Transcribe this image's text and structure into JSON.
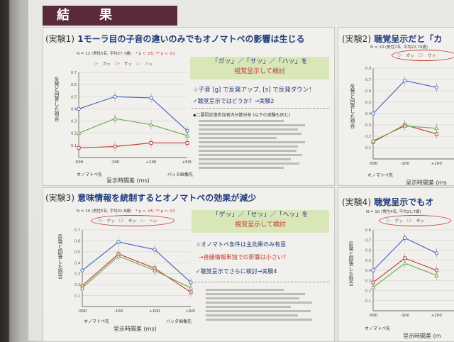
{
  "section_title": "結　果",
  "exp1": {
    "tag": "(実験1)",
    "title": "1モーラ目の子音の違いのみでもオノマトペの影響は生じる",
    "meta": "N = 12 (男性5名, 平均27.7歳)",
    "sig": "* p < .05, ** p < .01",
    "legend": [
      "ガッ",
      "サッ",
      "ハッ"
    ],
    "ylabel": "反発と回答した割合",
    "xlabel": "呈示時間差 (ms)",
    "xtick_left": "オノマトペ先",
    "xtick_right": "バッタ画像先",
    "ticks": [
      "-500",
      "-100",
      "+100",
      "+500"
    ],
    "yticks": [
      "0.1",
      "0.2",
      "0.3",
      "0.4",
      "0.5",
      "0.6",
      "0.7"
    ],
    "box_line1": "「ガッ」／「サッ」／「ハッ」を",
    "box_line2": "視覚呈示して検討",
    "finding1": "☆子音 [g] で反発アップ, [s] で反発ダウン！",
    "finding2": "✓聴覚呈示ではどうか？→実験2",
    "stats_head": "◆二要因反復参加者内分散分析 (以下の実験も同じ)"
  },
  "exp2": {
    "tag": "(実験2)",
    "title": "聴覚呈示だと「カ",
    "meta": "N = 10 (男性7名, 平均22.70歳)",
    "legend": [
      "ガッ",
      "サッ"
    ],
    "ylabel": "反発と回答した割合",
    "xlabel": "呈示時間差 (ms",
    "xtick_left": "オノマトペ先",
    "ticks": [
      "-500",
      "-100",
      "+100"
    ]
  },
  "exp3": {
    "tag": "(実験3)",
    "title": "意味情報を統制するとオノマトペの効果が減少",
    "meta": "N = 10 (男性5名, 平均21.8歳)",
    "sig": "* p < .05, ** p < .01",
    "legend": [
      "ゲッ",
      "セッ",
      "ヘッ"
    ],
    "ylabel": "反発と回答した割合",
    "xlabel": "呈示時間差 (ms)",
    "xtick_left": "オノマトペ先",
    "xtick_right": "バッタ画像先",
    "ticks": [
      "-500",
      "-100",
      "+100",
      "+500"
    ],
    "box_line1": "「ゲッ」／「セッ」／「ヘッ」を",
    "box_line2": "視覚呈示して検討",
    "finding1": "☆オノマトペ条件は主効果のみ有意",
    "finding2": "→音韻情報単独での影響は小さい?",
    "finding3": "✓聴覚呈示でさらに検討→実験4"
  },
  "exp4": {
    "tag": "(実験4)",
    "title": "聴覚呈示でもオ",
    "meta": "N = 10 (男性4名, 平均21.7歳)",
    "legend": [
      "ゲッ",
      "セッ"
    ],
    "ylabel": "反発と回答した割合",
    "xlabel": "呈示時間差 (m",
    "xtick_left": "オノマトペ先",
    "ticks": [
      "-500",
      "-100",
      "+100"
    ]
  },
  "chart_data": [
    {
      "type": "line",
      "title": "",
      "xlabel": "呈示時間差 (ms)",
      "ylabel": "反発と回答した割合",
      "categories": [
        "-500",
        "-100",
        "+100",
        "+500"
      ],
      "ylim": [
        0,
        0.7
      ],
      "series": [
        {
          "name": "ガッ",
          "values": [
            0.4,
            0.5,
            0.49,
            0.22
          ],
          "color": "#3a5fbf"
        },
        {
          "name": "サッ",
          "values": [
            0.08,
            0.09,
            0.12,
            0.12
          ],
          "color": "#c0392b"
        },
        {
          "name": "ハッ",
          "values": [
            0.2,
            0.32,
            0.27,
            0.18
          ],
          "color": "#6aa84f"
        }
      ]
    },
    {
      "type": "line",
      "title": "",
      "xlabel": "呈示時間差 (ms",
      "ylabel": "反発と回答した割合",
      "categories": [
        "-500",
        "-100",
        "+100"
      ],
      "ylim": [
        0,
        0.8
      ],
      "series": [
        {
          "name": "ガッ",
          "values": [
            0.4,
            0.69,
            0.63
          ],
          "color": "#3a5fbf"
        },
        {
          "name": "サッ",
          "values": [
            0.15,
            0.3,
            0.22
          ],
          "color": "#c0392b"
        },
        {
          "name": "",
          "values": [
            0.16,
            0.29,
            0.27
          ],
          "color": "#6aa84f"
        }
      ]
    },
    {
      "type": "line",
      "title": "",
      "xlabel": "呈示時間差 (ms)",
      "ylabel": "反発と回答した割合",
      "categories": [
        "-500",
        "-100",
        "+100",
        "+500"
      ],
      "ylim": [
        0,
        0.7
      ],
      "series": [
        {
          "name": "ゲッ",
          "values": [
            0.33,
            0.59,
            0.52,
            0.22
          ],
          "color": "#3a5fbf"
        },
        {
          "name": "セッ",
          "values": [
            0.19,
            0.48,
            0.35,
            0.13
          ],
          "color": "#c0392b"
        },
        {
          "name": "ヘッ",
          "values": [
            0.17,
            0.46,
            0.33,
            0.17
          ],
          "color": "#6aa84f"
        }
      ]
    },
    {
      "type": "line",
      "title": "",
      "xlabel": "呈示時間差 (m",
      "ylabel": "反発と回答した割合",
      "categories": [
        "-500",
        "-100",
        "+100"
      ],
      "ylim": [
        0,
        0.8
      ],
      "series": [
        {
          "name": "ゲッ",
          "values": [
            0.4,
            0.72,
            0.57
          ],
          "color": "#3a5fbf"
        },
        {
          "name": "セッ",
          "values": [
            0.28,
            0.52,
            0.4
          ],
          "color": "#c0392b"
        },
        {
          "name": "",
          "values": [
            0.23,
            0.47,
            0.35
          ],
          "color": "#6aa84f"
        }
      ]
    }
  ]
}
